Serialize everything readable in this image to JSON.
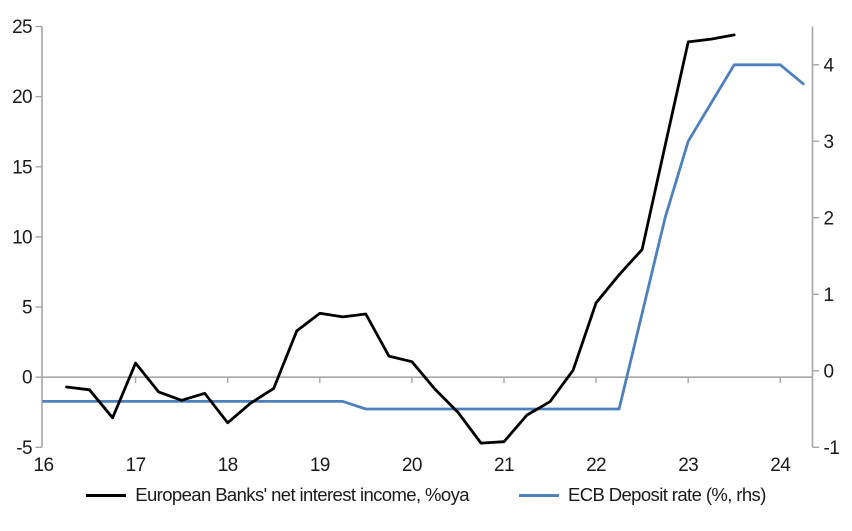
{
  "chart_data": {
    "type": "line",
    "title": "",
    "x_domain": [
      16,
      24.35
    ],
    "x_tick_values": [
      16,
      17,
      18,
      19,
      20,
      21,
      22,
      23,
      24
    ],
    "x_tick_labels": [
      "16",
      "17",
      "18",
      "19",
      "20",
      "21",
      "22",
      "23",
      "24"
    ],
    "left_axis": {
      "range": [
        -5,
        25
      ],
      "tick_values": [
        -5,
        0,
        5,
        10,
        15,
        20,
        25
      ],
      "tick_labels": [
        "-5",
        "0",
        "5",
        "10",
        "15",
        "20",
        "25"
      ]
    },
    "right_axis": {
      "range": [
        -1,
        4.5
      ],
      "tick_values": [
        -1,
        0,
        1,
        2,
        3,
        4
      ],
      "tick_labels": [
        "-1",
        "0",
        "1",
        "2",
        "3",
        "4"
      ]
    },
    "grid": "horizontal-zero-line-only",
    "legend_position": "bottom",
    "colors": {
      "axis": "#a6a6a6",
      "zero_line": "#a6a6a6",
      "text": "#1a1a1a",
      "background": "#ffffff"
    },
    "series": [
      {
        "name": "European Banks' net interest income, %oya",
        "axis": "left",
        "color": "#000000",
        "points": [
          [
            16.25,
            -0.7
          ],
          [
            16.5,
            -0.9
          ],
          [
            16.75,
            -2.9
          ],
          [
            17.0,
            1.0
          ],
          [
            17.25,
            -1.05
          ],
          [
            17.5,
            -1.65
          ],
          [
            17.75,
            -1.15
          ],
          [
            18.0,
            -3.25
          ],
          [
            18.25,
            -1.85
          ],
          [
            18.5,
            -0.8
          ],
          [
            18.75,
            3.3
          ],
          [
            19.0,
            4.55
          ],
          [
            19.25,
            4.3
          ],
          [
            19.5,
            4.5
          ],
          [
            19.75,
            1.5
          ],
          [
            20.0,
            1.1
          ],
          [
            20.25,
            -0.85
          ],
          [
            20.5,
            -2.5
          ],
          [
            20.75,
            -4.7
          ],
          [
            21.0,
            -4.6
          ],
          [
            21.25,
            -2.7
          ],
          [
            21.5,
            -1.75
          ],
          [
            21.75,
            0.5
          ],
          [
            22.0,
            5.3
          ],
          [
            22.25,
            7.3
          ],
          [
            22.5,
            9.1
          ],
          [
            22.75,
            16.5
          ],
          [
            23.0,
            23.9
          ],
          [
            23.25,
            24.1
          ],
          [
            23.5,
            24.4
          ]
        ]
      },
      {
        "name": "ECB Deposit rate (%, rhs)",
        "axis": "right",
        "color": "#4e81bc",
        "points": [
          [
            16.0,
            -0.4
          ],
          [
            16.25,
            -0.4
          ],
          [
            16.5,
            -0.4
          ],
          [
            16.75,
            -0.4
          ],
          [
            17.0,
            -0.4
          ],
          [
            17.25,
            -0.4
          ],
          [
            17.5,
            -0.4
          ],
          [
            17.75,
            -0.4
          ],
          [
            18.0,
            -0.4
          ],
          [
            18.25,
            -0.4
          ],
          [
            18.5,
            -0.4
          ],
          [
            18.75,
            -0.4
          ],
          [
            19.0,
            -0.4
          ],
          [
            19.25,
            -0.4
          ],
          [
            19.5,
            -0.5
          ],
          [
            19.75,
            -0.5
          ],
          [
            20.0,
            -0.5
          ],
          [
            20.25,
            -0.5
          ],
          [
            20.5,
            -0.5
          ],
          [
            20.75,
            -0.5
          ],
          [
            21.0,
            -0.5
          ],
          [
            21.25,
            -0.5
          ],
          [
            21.5,
            -0.5
          ],
          [
            21.75,
            -0.5
          ],
          [
            22.0,
            -0.5
          ],
          [
            22.25,
            -0.5
          ],
          [
            22.5,
            0.75
          ],
          [
            22.75,
            2.0
          ],
          [
            23.0,
            3.0
          ],
          [
            23.25,
            3.5
          ],
          [
            23.5,
            4.0
          ],
          [
            23.75,
            4.0
          ],
          [
            24.0,
            4.0
          ],
          [
            24.25,
            3.75
          ]
        ]
      }
    ]
  }
}
